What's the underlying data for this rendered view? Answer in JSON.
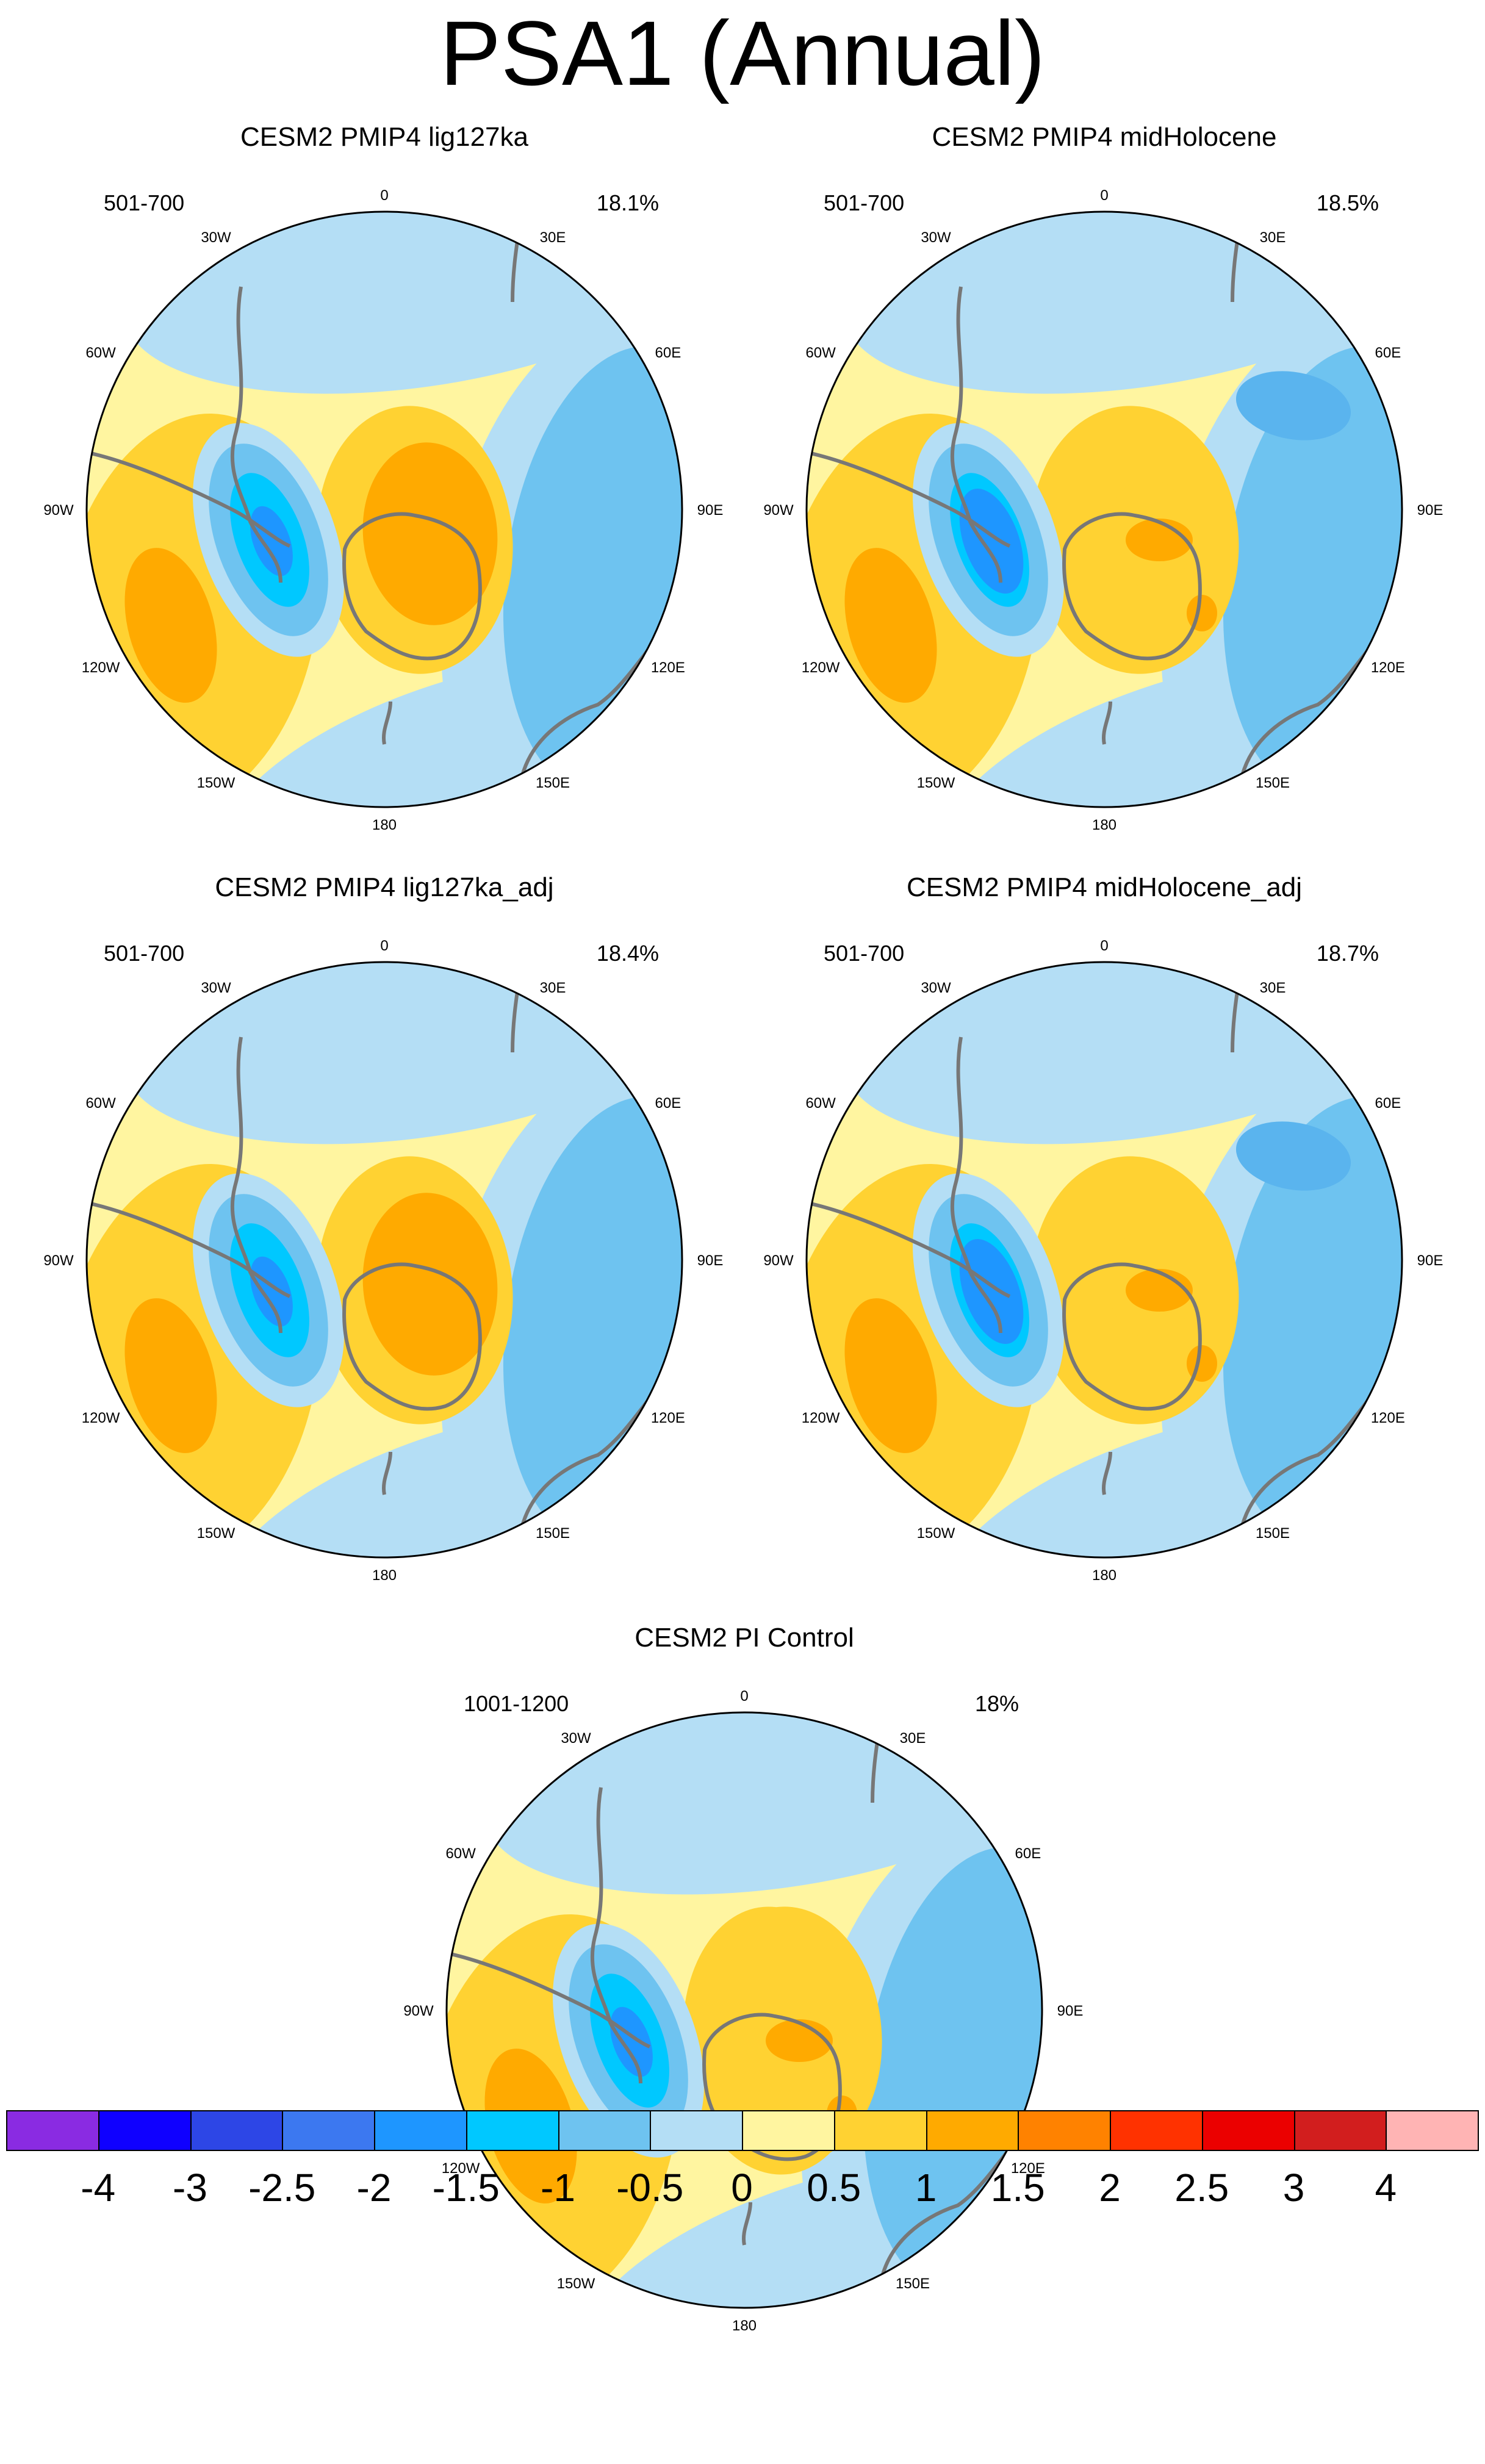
{
  "title": "PSA1 (Annual)",
  "panels": [
    {
      "title": "CESM2 PMIP4 lig127ka",
      "years": "501-700",
      "variance": "18.1%"
    },
    {
      "title": "CESM2 PMIP4 midHolocene",
      "years": "501-700",
      "variance": "18.5%"
    },
    {
      "title": "CESM2 PMIP4 lig127ka_adj",
      "years": "501-700",
      "variance": "18.4%"
    },
    {
      "title": "CESM2 PMIP4 midHolocene_adj",
      "years": "501-700",
      "variance": "18.7%"
    },
    {
      "title": "CESM2 PI Control",
      "years": "1001-1200",
      "variance": "18%"
    }
  ],
  "longitude_labels": [
    "0",
    "30E",
    "60E",
    "90E",
    "120E",
    "150E",
    "180",
    "150W",
    "120W",
    "90W",
    "60W",
    "30W"
  ],
  "colorbar": {
    "levels": [
      "-4",
      "-3",
      "-2.5",
      "-2",
      "-1.5",
      "-1",
      "-0.5",
      "0",
      "0.5",
      "1",
      "1.5",
      "2",
      "2.5",
      "3",
      "4"
    ],
    "colors": [
      "#8A2BE2",
      "#0F00FF",
      "#2D46E6",
      "#3C78F0",
      "#1E96FF",
      "#00C8FF",
      "#6EC3F0",
      "#B4DEF5",
      "#FFF5A0",
      "#FFD232",
      "#FFAA00",
      "#FF8200",
      "#FF3200",
      "#EB0000",
      "#D21E1E",
      "#FFB4B4"
    ]
  },
  "palette": {
    "neg_light": "#B4DEF5",
    "neg_mid": "#6EC3F0",
    "neg_1": "#5AB4EE",
    "neg_2": "#1E96FF",
    "neg_3": "#00C8FF",
    "pos_light": "#FFF5A0",
    "pos_mid": "#FFD232",
    "pos_2": "#FFAA00",
    "coast": "#777777"
  }
}
